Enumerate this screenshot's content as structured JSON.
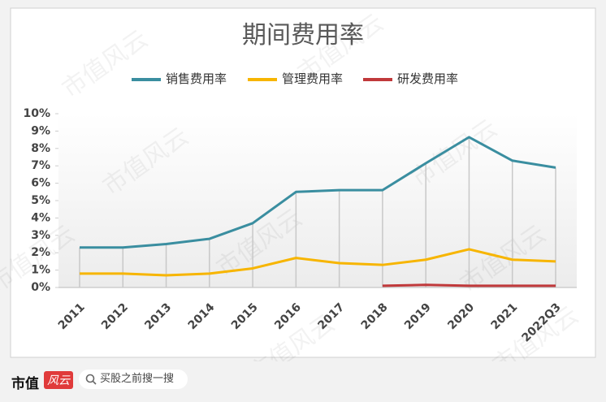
{
  "chart_data": {
    "type": "line",
    "title": "期间费用率",
    "categories": [
      "2011",
      "2012",
      "2013",
      "2014",
      "2015",
      "2016",
      "2017",
      "2018",
      "2019",
      "2020",
      "2021",
      "2022Q3"
    ],
    "series": [
      {
        "name": "销售费用率",
        "color": "#3a8ea0",
        "values": [
          2.3,
          2.3,
          2.5,
          2.8,
          3.7,
          5.5,
          5.6,
          5.6,
          7.15,
          8.65,
          7.3,
          6.9
        ]
      },
      {
        "name": "管理费用率",
        "color": "#f7b500",
        "values": [
          0.8,
          0.8,
          0.7,
          0.8,
          1.1,
          1.7,
          1.4,
          1.3,
          1.6,
          2.2,
          1.6,
          1.5
        ]
      },
      {
        "name": "研发费用率",
        "color": "#c0393b",
        "values": [
          null,
          null,
          null,
          null,
          null,
          null,
          null,
          0.1,
          0.15,
          0.1,
          0.1,
          0.1
        ]
      }
    ],
    "ylim": [
      0,
      10
    ],
    "yticks": [
      {
        "value": 0,
        "label": "0%"
      },
      {
        "value": 1,
        "label": "1%"
      },
      {
        "value": 2,
        "label": "2%"
      },
      {
        "value": 3,
        "label": "3%"
      },
      {
        "value": 4,
        "label": "4%"
      },
      {
        "value": 5,
        "label": "5%"
      },
      {
        "value": 6,
        "label": "6%"
      },
      {
        "value": 7,
        "label": "7%"
      },
      {
        "value": 8,
        "label": "8%"
      },
      {
        "value": 9,
        "label": "9%"
      },
      {
        "value": 10,
        "label": "10%"
      }
    ],
    "legend": "top",
    "watermark": "市值风云"
  },
  "footer": {
    "logo": "市值",
    "logo_badge": "风云",
    "search": "买股之前搜一搜"
  }
}
